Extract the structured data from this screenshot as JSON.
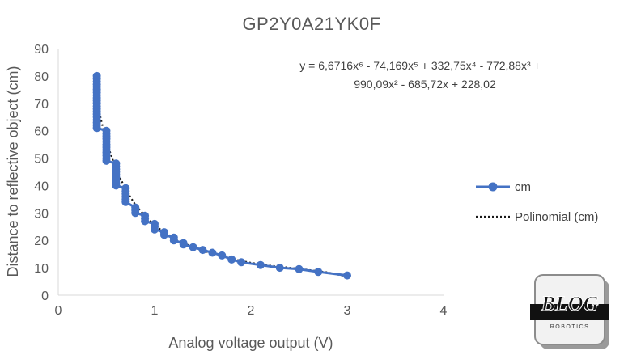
{
  "chart_data": {
    "type": "scatter",
    "title": "GP2Y0A21YK0F",
    "xlabel": "Analog voltage output (V)",
    "ylabel": "Distance to reflective object (cm)",
    "xlim": [
      0,
      4
    ],
    "ylim": [
      0,
      90
    ],
    "xticks": [
      "0",
      "1",
      "2",
      "3",
      "4"
    ],
    "yticks": [
      "0",
      "10",
      "20",
      "30",
      "40",
      "50",
      "60",
      "70",
      "80",
      "90"
    ],
    "grid": false,
    "legend_position": "right",
    "series": [
      {
        "name": "cm",
        "color": "#4472c4",
        "points": [
          [
            0.4,
            80
          ],
          [
            0.4,
            79
          ],
          [
            0.4,
            78
          ],
          [
            0.4,
            77
          ],
          [
            0.4,
            76
          ],
          [
            0.4,
            75
          ],
          [
            0.4,
            74
          ],
          [
            0.4,
            73
          ],
          [
            0.4,
            72
          ],
          [
            0.4,
            71
          ],
          [
            0.4,
            70
          ],
          [
            0.4,
            69
          ],
          [
            0.4,
            68
          ],
          [
            0.4,
            67
          ],
          [
            0.4,
            66
          ],
          [
            0.4,
            65
          ],
          [
            0.4,
            64
          ],
          [
            0.4,
            63
          ],
          [
            0.4,
            62
          ],
          [
            0.4,
            61
          ],
          [
            0.5,
            60
          ],
          [
            0.5,
            59
          ],
          [
            0.5,
            58
          ],
          [
            0.5,
            57
          ],
          [
            0.5,
            56
          ],
          [
            0.5,
            55
          ],
          [
            0.5,
            54
          ],
          [
            0.5,
            53
          ],
          [
            0.5,
            52
          ],
          [
            0.5,
            51
          ],
          [
            0.5,
            50
          ],
          [
            0.5,
            49
          ],
          [
            0.6,
            48
          ],
          [
            0.6,
            47
          ],
          [
            0.6,
            46
          ],
          [
            0.6,
            45
          ],
          [
            0.6,
            44
          ],
          [
            0.6,
            43
          ],
          [
            0.6,
            42
          ],
          [
            0.6,
            41
          ],
          [
            0.6,
            40
          ],
          [
            0.7,
            39
          ],
          [
            0.7,
            38
          ],
          [
            0.7,
            37
          ],
          [
            0.7,
            36
          ],
          [
            0.7,
            35
          ],
          [
            0.7,
            34
          ],
          [
            0.8,
            32
          ],
          [
            0.8,
            31
          ],
          [
            0.8,
            30
          ],
          [
            0.9,
            29
          ],
          [
            0.9,
            28
          ],
          [
            0.9,
            27
          ],
          [
            1.0,
            26
          ],
          [
            1.0,
            25
          ],
          [
            1.0,
            24
          ],
          [
            1.1,
            23
          ],
          [
            1.1,
            22
          ],
          [
            1.2,
            21
          ],
          [
            1.2,
            20
          ],
          [
            1.3,
            19
          ],
          [
            1.3,
            18.5
          ],
          [
            1.4,
            17.5
          ],
          [
            1.5,
            16.5
          ],
          [
            1.6,
            15.5
          ],
          [
            1.7,
            14.5
          ],
          [
            1.8,
            13
          ],
          [
            1.9,
            12
          ],
          [
            2.1,
            11
          ],
          [
            2.3,
            10
          ],
          [
            2.5,
            9.5
          ],
          [
            2.7,
            8.5
          ],
          [
            3.0,
            7.2
          ]
        ]
      },
      {
        "name": "Polinomial (cm)",
        "color": "#000000",
        "trendline_points": [
          [
            0.4,
            71
          ],
          [
            0.45,
            63
          ],
          [
            0.5,
            56
          ],
          [
            0.55,
            51
          ],
          [
            0.6,
            46
          ],
          [
            0.7,
            38.5
          ],
          [
            0.8,
            33
          ],
          [
            0.9,
            29
          ],
          [
            1.0,
            25.5
          ],
          [
            1.1,
            23
          ],
          [
            1.2,
            21
          ],
          [
            1.3,
            19
          ],
          [
            1.4,
            17.5
          ],
          [
            1.5,
            16.3
          ],
          [
            1.6,
            15.2
          ],
          [
            1.7,
            14.2
          ],
          [
            1.8,
            13.3
          ],
          [
            1.9,
            12.5
          ],
          [
            2.0,
            11.8
          ],
          [
            2.2,
            10.8
          ],
          [
            2.4,
            10.0
          ],
          [
            2.6,
            9.2
          ],
          [
            2.8,
            8.3
          ],
          [
            3.0,
            6.8
          ]
        ]
      }
    ],
    "equation_line1": "y = 6,6716x⁶ - 74,169x⁵ + 332,75x⁴ - 772,88x³ +",
    "equation_line2": "990,09x² - 685,72x + 228,02"
  },
  "logo": {
    "text": "BLOG",
    "subtext": "ROBOTICS"
  }
}
